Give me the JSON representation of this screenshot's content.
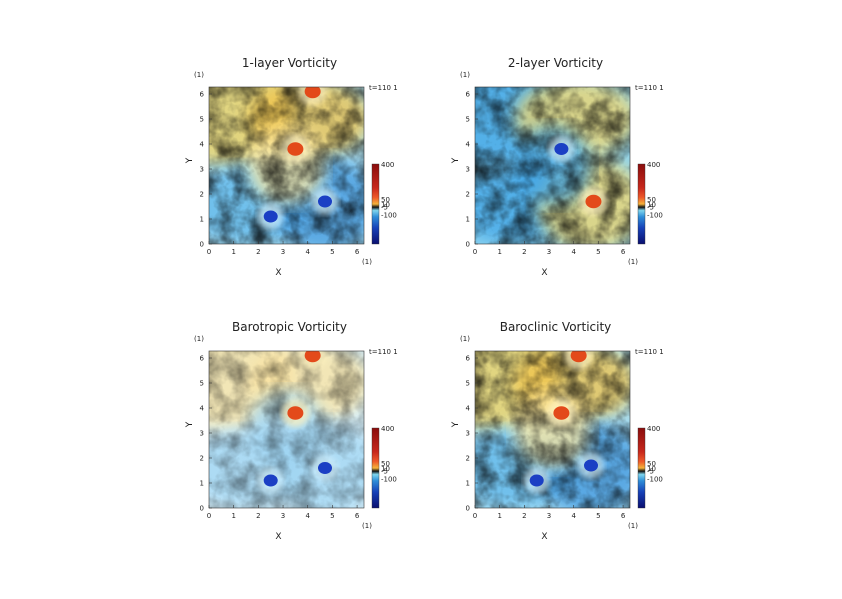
{
  "chart_data": [
    {
      "type": "heatmap",
      "title": "1-layer Vorticity",
      "time_label": "t=110 1",
      "xlabel": "X",
      "ylabel": "Y",
      "x_unit": "(1)",
      "y_unit": "(1)",
      "xlim": [
        0,
        6.28
      ],
      "ylim": [
        0,
        6.28
      ],
      "xticks": [
        "0",
        "1",
        "2",
        "3",
        "4",
        "5",
        "6"
      ],
      "yticks": [
        "0",
        "1",
        "2",
        "3",
        "4",
        "5",
        "6"
      ],
      "colorbar": {
        "ticks": [
          "400",
          "50",
          "10",
          "-5",
          "-100"
        ],
        "range": [
          -100,
          400
        ]
      },
      "features": [
        {
          "kind": "positive-vortex",
          "x": 3.5,
          "y": 3.8
        },
        {
          "kind": "negative-vortex",
          "x": 4.7,
          "y": 1.7
        },
        {
          "kind": "negative-vortex",
          "x": 2.5,
          "y": 1.1
        },
        {
          "kind": "positive-vortex",
          "x": 4.2,
          "y": 6.1
        }
      ]
    },
    {
      "type": "heatmap",
      "title": "2-layer Vorticity",
      "time_label": "t=110 1",
      "xlabel": "X",
      "ylabel": "Y",
      "x_unit": "(1)",
      "y_unit": "(1)",
      "xlim": [
        0,
        6.28
      ],
      "ylim": [
        0,
        6.28
      ],
      "xticks": [
        "0",
        "1",
        "2",
        "3",
        "4",
        "5",
        "6"
      ],
      "yticks": [
        "0",
        "1",
        "2",
        "3",
        "4",
        "5",
        "6"
      ],
      "colorbar": {
        "ticks": [
          "400",
          "50",
          "10",
          "-5",
          "-100"
        ],
        "range": [
          -100,
          400
        ]
      },
      "features": [
        {
          "kind": "negative-vortex",
          "x": 3.5,
          "y": 3.8
        },
        {
          "kind": "positive-vortex",
          "x": 4.8,
          "y": 1.7
        }
      ]
    },
    {
      "type": "heatmap",
      "title": "Barotropic Vorticity",
      "time_label": "t=110 1",
      "xlabel": "X",
      "ylabel": "Y",
      "x_unit": "(1)",
      "y_unit": "(1)",
      "xlim": [
        0,
        6.28
      ],
      "ylim": [
        0,
        6.28
      ],
      "xticks": [
        "0",
        "1",
        "2",
        "3",
        "4",
        "5",
        "6"
      ],
      "yticks": [
        "0",
        "1",
        "2",
        "3",
        "4",
        "5",
        "6"
      ],
      "colorbar": {
        "ticks": [
          "400",
          "50",
          "10",
          "-5",
          "-100"
        ],
        "range": [
          -100,
          400
        ]
      },
      "features": [
        {
          "kind": "positive-vortex",
          "x": 3.5,
          "y": 3.8
        },
        {
          "kind": "negative-vortex",
          "x": 4.7,
          "y": 1.6
        },
        {
          "kind": "negative-vortex",
          "x": 2.5,
          "y": 1.1
        },
        {
          "kind": "positive-vortex",
          "x": 4.2,
          "y": 6.1
        }
      ]
    },
    {
      "type": "heatmap",
      "title": "Baroclinic Vorticity",
      "time_label": "t=110 1",
      "xlabel": "X",
      "ylabel": "Y",
      "x_unit": "(1)",
      "y_unit": "(1)",
      "xlim": [
        0,
        6.28
      ],
      "ylim": [
        0,
        6.28
      ],
      "xticks": [
        "0",
        "1",
        "2",
        "3",
        "4",
        "5",
        "6"
      ],
      "yticks": [
        "0",
        "1",
        "2",
        "3",
        "4",
        "5",
        "6"
      ],
      "colorbar": {
        "ticks": [
          "400",
          "50",
          "10",
          "-5",
          "-100"
        ],
        "range": [
          -100,
          400
        ]
      },
      "features": [
        {
          "kind": "positive-vortex",
          "x": 3.5,
          "y": 3.8
        },
        {
          "kind": "negative-vortex",
          "x": 4.7,
          "y": 1.7
        },
        {
          "kind": "negative-vortex",
          "x": 2.5,
          "y": 1.1
        },
        {
          "kind": "positive-vortex",
          "x": 4.2,
          "y": 6.1
        }
      ]
    }
  ]
}
